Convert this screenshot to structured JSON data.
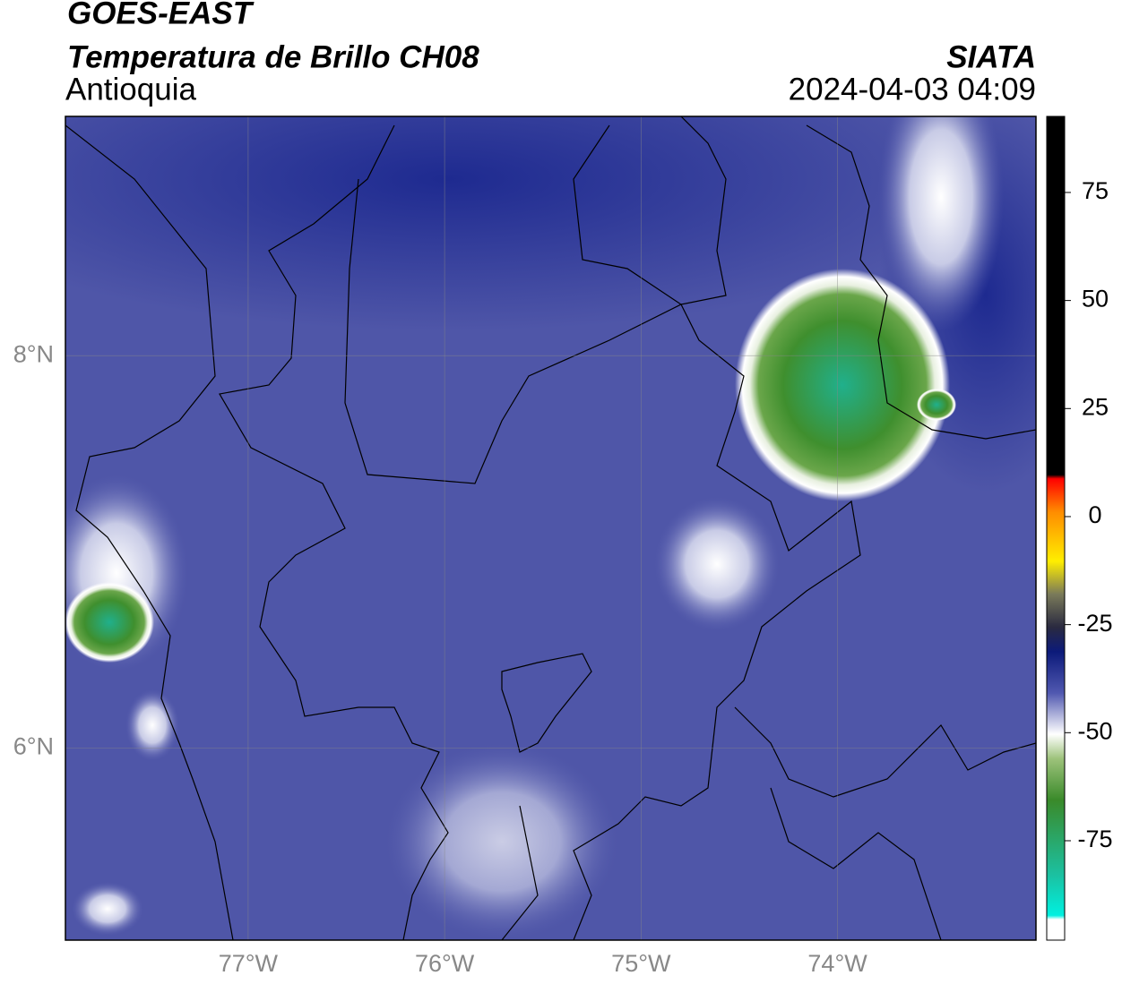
{
  "header": {
    "title": "GOES-EAST",
    "subtitle": "Temperatura de Brillo CH08",
    "region": "Antioquia",
    "source": "SIATA",
    "datetime": "2024-04-03 04:09"
  },
  "map": {
    "xlim": [
      -77.93,
      -72.99
    ],
    "ylim": [
      5.02,
      9.22
    ],
    "xticks": [
      {
        "value": -77,
        "label": "77°W"
      },
      {
        "value": -76,
        "label": "76°W"
      },
      {
        "value": -75,
        "label": "75°W"
      },
      {
        "value": -74,
        "label": "74°W"
      }
    ],
    "yticks": [
      {
        "value": 8,
        "label": "8°N"
      },
      {
        "value": 6,
        "label": "6°N"
      }
    ]
  },
  "colorbar": {
    "lim": [
      -98,
      92.6
    ],
    "ticks": [
      75,
      50,
      25,
      0,
      -25,
      -50,
      -75
    ]
  }
}
